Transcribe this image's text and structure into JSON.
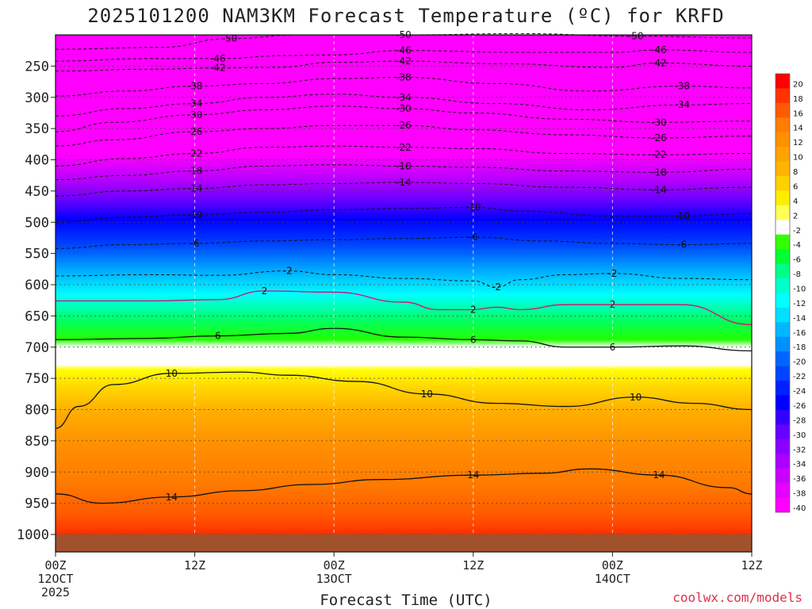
{
  "title": "2025101200 NAM3KM Forecast Temperature (ºC) for KRFD",
  "xlabel": "Forecast Time (UTC)",
  "credit": "coolwx.com/models",
  "chart_data": {
    "type": "heatmap",
    "title": "2025101200 NAM3KM Forecast Temperature (ºC) for KRFD",
    "xlabel": "Forecast Time (UTC)",
    "ylabel": "",
    "x_range_hours": [
      0,
      60
    ],
    "x_ticks": [
      {
        "hour": 0,
        "lines": [
          "00Z",
          "12OCT",
          "2025"
        ]
      },
      {
        "hour": 12,
        "lines": [
          "12Z"
        ]
      },
      {
        "hour": 24,
        "lines": [
          "00Z",
          "13OCT"
        ]
      },
      {
        "hour": 36,
        "lines": [
          "12Z"
        ]
      },
      {
        "hour": 48,
        "lines": [
          "00Z",
          "14OCT"
        ]
      },
      {
        "hour": 60,
        "lines": [
          "12Z"
        ]
      }
    ],
    "y_ticks": [
      250,
      300,
      350,
      400,
      450,
      500,
      550,
      600,
      650,
      700,
      750,
      800,
      850,
      900,
      950,
      1000
    ],
    "y_range_hpa": [
      200,
      1000
    ],
    "surface_pressure_hpa": 985,
    "colorbar": {
      "levels": [
        20,
        18,
        16,
        14,
        12,
        10,
        8,
        6,
        4,
        2,
        -2,
        -4,
        -6,
        -8,
        -10,
        -12,
        -14,
        -16,
        -18,
        -20,
        -22,
        -24,
        -26,
        -28,
        -30,
        -32,
        -34,
        -36,
        -38,
        -40
      ],
      "colors": [
        "#ff0000",
        "#ff3300",
        "#ff5a00",
        "#ff7d00",
        "#ff9000",
        "#ffa300",
        "#ffb400",
        "#ffd000",
        "#ffee00",
        "#ffff55",
        "#ffffff",
        "#33ff00",
        "#00ff33",
        "#00ff88",
        "#00ffcc",
        "#00ffff",
        "#00e0ff",
        "#00b8ff",
        "#0090ff",
        "#0066ff",
        "#0044ff",
        "#0020ff",
        "#0000ff",
        "#3300ff",
        "#6600ff",
        "#8a00ff",
        "#aa00ff",
        "#cc00ff",
        "#e600ff",
        "#ff00ff"
      ]
    },
    "contours": [
      {
        "label": "-50",
        "points": [
          [
            0,
            223
          ],
          [
            9,
            220
          ],
          [
            15,
            206
          ],
          [
            21,
            200
          ],
          [
            30,
            200
          ],
          [
            40,
            198
          ],
          [
            50,
            202
          ],
          [
            60,
            205
          ]
        ]
      },
      {
        "label": "-46",
        "points": [
          [
            0,
            242
          ],
          [
            8,
            238
          ],
          [
            14,
            238
          ],
          [
            20,
            233
          ],
          [
            24,
            232
          ],
          [
            30,
            225
          ],
          [
            40,
            228
          ],
          [
            48,
            228
          ],
          [
            52,
            224
          ],
          [
            60,
            228
          ]
        ]
      },
      {
        "label": "-42",
        "points": [
          [
            0,
            258
          ],
          [
            8,
            255
          ],
          [
            14,
            253
          ],
          [
            19,
            252
          ],
          [
            24,
            244
          ],
          [
            30,
            242
          ],
          [
            38,
            246
          ],
          [
            48,
            252
          ],
          [
            52,
            245
          ],
          [
            60,
            250
          ]
        ]
      },
      {
        "label": "-38",
        "points": [
          [
            0,
            298
          ],
          [
            6,
            290
          ],
          [
            12,
            282
          ],
          [
            18,
            278
          ],
          [
            24,
            270
          ],
          [
            30,
            268
          ],
          [
            38,
            278
          ],
          [
            46,
            290
          ],
          [
            54,
            282
          ],
          [
            60,
            285
          ]
        ]
      },
      {
        "label": "-34",
        "points": [
          [
            0,
            330
          ],
          [
            6,
            318
          ],
          [
            12,
            310
          ],
          [
            18,
            300
          ],
          [
            24,
            295
          ],
          [
            30,
            300
          ],
          [
            38,
            310
          ],
          [
            46,
            320
          ],
          [
            54,
            312
          ],
          [
            60,
            310
          ]
        ]
      },
      {
        "label": "-30",
        "points": [
          [
            0,
            355
          ],
          [
            5,
            340
          ],
          [
            12,
            328
          ],
          [
            18,
            320
          ],
          [
            24,
            314
          ],
          [
            30,
            318
          ],
          [
            36,
            325
          ],
          [
            44,
            335
          ],
          [
            52,
            340
          ],
          [
            60,
            338
          ]
        ]
      },
      {
        "label": "-26",
        "points": [
          [
            0,
            378
          ],
          [
            5,
            368
          ],
          [
            12,
            355
          ],
          [
            18,
            350
          ],
          [
            24,
            345
          ],
          [
            30,
            345
          ],
          [
            36,
            352
          ],
          [
            44,
            360
          ],
          [
            52,
            365
          ],
          [
            60,
            362
          ]
        ]
      },
      {
        "label": "-22",
        "points": [
          [
            0,
            410
          ],
          [
            6,
            398
          ],
          [
            12,
            390
          ],
          [
            18,
            380
          ],
          [
            24,
            378
          ],
          [
            30,
            380
          ],
          [
            36,
            382
          ],
          [
            44,
            390
          ],
          [
            52,
            392
          ],
          [
            60,
            390
          ]
        ]
      },
      {
        "label": "-18",
        "points": [
          [
            0,
            432
          ],
          [
            6,
            425
          ],
          [
            12,
            418
          ],
          [
            18,
            410
          ],
          [
            24,
            408
          ],
          [
            30,
            410
          ],
          [
            36,
            412
          ],
          [
            44,
            418
          ],
          [
            52,
            420
          ],
          [
            60,
            415
          ]
        ]
      },
      {
        "label": "-14",
        "points": [
          [
            0,
            458
          ],
          [
            6,
            450
          ],
          [
            12,
            446
          ],
          [
            18,
            440
          ],
          [
            24,
            438
          ],
          [
            30,
            436
          ],
          [
            36,
            438
          ],
          [
            44,
            444
          ],
          [
            52,
            448
          ],
          [
            60,
            444
          ]
        ]
      },
      {
        "label": "-10",
        "points": [
          [
            0,
            500
          ],
          [
            6,
            492
          ],
          [
            12,
            488
          ],
          [
            18,
            484
          ],
          [
            24,
            480
          ],
          [
            30,
            478
          ],
          [
            36,
            476
          ],
          [
            40,
            482
          ],
          [
            48,
            490
          ],
          [
            54,
            490
          ],
          [
            60,
            486
          ]
        ]
      },
      {
        "label": "-6",
        "points": [
          [
            0,
            542
          ],
          [
            6,
            536
          ],
          [
            12,
            534
          ],
          [
            18,
            530
          ],
          [
            24,
            528
          ],
          [
            30,
            526
          ],
          [
            36,
            524
          ],
          [
            42,
            530
          ],
          [
            48,
            534
          ],
          [
            54,
            536
          ],
          [
            60,
            534
          ]
        ]
      },
      {
        "label": "-2",
        "points": [
          [
            0,
            586
          ],
          [
            8,
            584
          ],
          [
            14,
            585
          ],
          [
            20,
            578
          ],
          [
            24,
            584
          ],
          [
            30,
            590
          ],
          [
            36,
            594
          ],
          [
            38,
            604
          ],
          [
            40,
            592
          ],
          [
            44,
            584
          ],
          [
            48,
            582
          ],
          [
            54,
            590
          ],
          [
            60,
            592
          ]
        ]
      },
      {
        "label": "2",
        "points": [
          [
            0,
            626
          ],
          [
            8,
            626
          ],
          [
            14,
            624
          ],
          [
            18,
            610
          ],
          [
            24,
            612
          ],
          [
            30,
            628
          ],
          [
            33,
            640
          ],
          [
            36,
            640
          ],
          [
            38,
            636
          ],
          [
            40,
            640
          ],
          [
            44,
            632
          ],
          [
            48,
            632
          ],
          [
            54,
            632
          ],
          [
            60,
            664
          ]
        ]
      },
      {
        "label": "6",
        "points": [
          [
            0,
            688
          ],
          [
            8,
            686
          ],
          [
            14,
            682
          ],
          [
            20,
            678
          ],
          [
            24,
            670
          ],
          [
            30,
            684
          ],
          [
            36,
            688
          ],
          [
            40,
            690
          ],
          [
            44,
            700
          ],
          [
            48,
            700
          ],
          [
            54,
            698
          ],
          [
            60,
            706
          ]
        ]
      },
      {
        "label": "10",
        "points": [
          [
            0,
            830
          ],
          [
            2,
            795
          ],
          [
            5,
            760
          ],
          [
            10,
            742
          ],
          [
            16,
            740
          ],
          [
            20,
            745
          ],
          [
            26,
            755
          ],
          [
            32,
            775
          ],
          [
            38,
            790
          ],
          [
            44,
            795
          ],
          [
            50,
            780
          ],
          [
            55,
            790
          ],
          [
            60,
            800
          ]
        ]
      },
      {
        "label": "14",
        "points": [
          [
            0,
            935
          ],
          [
            4,
            950
          ],
          [
            10,
            940
          ],
          [
            16,
            930
          ],
          [
            22,
            920
          ],
          [
            28,
            912
          ],
          [
            36,
            905
          ],
          [
            42,
            902
          ],
          [
            46,
            895
          ],
          [
            52,
            905
          ],
          [
            58,
            925
          ],
          [
            60,
            935
          ]
        ]
      }
    ]
  }
}
